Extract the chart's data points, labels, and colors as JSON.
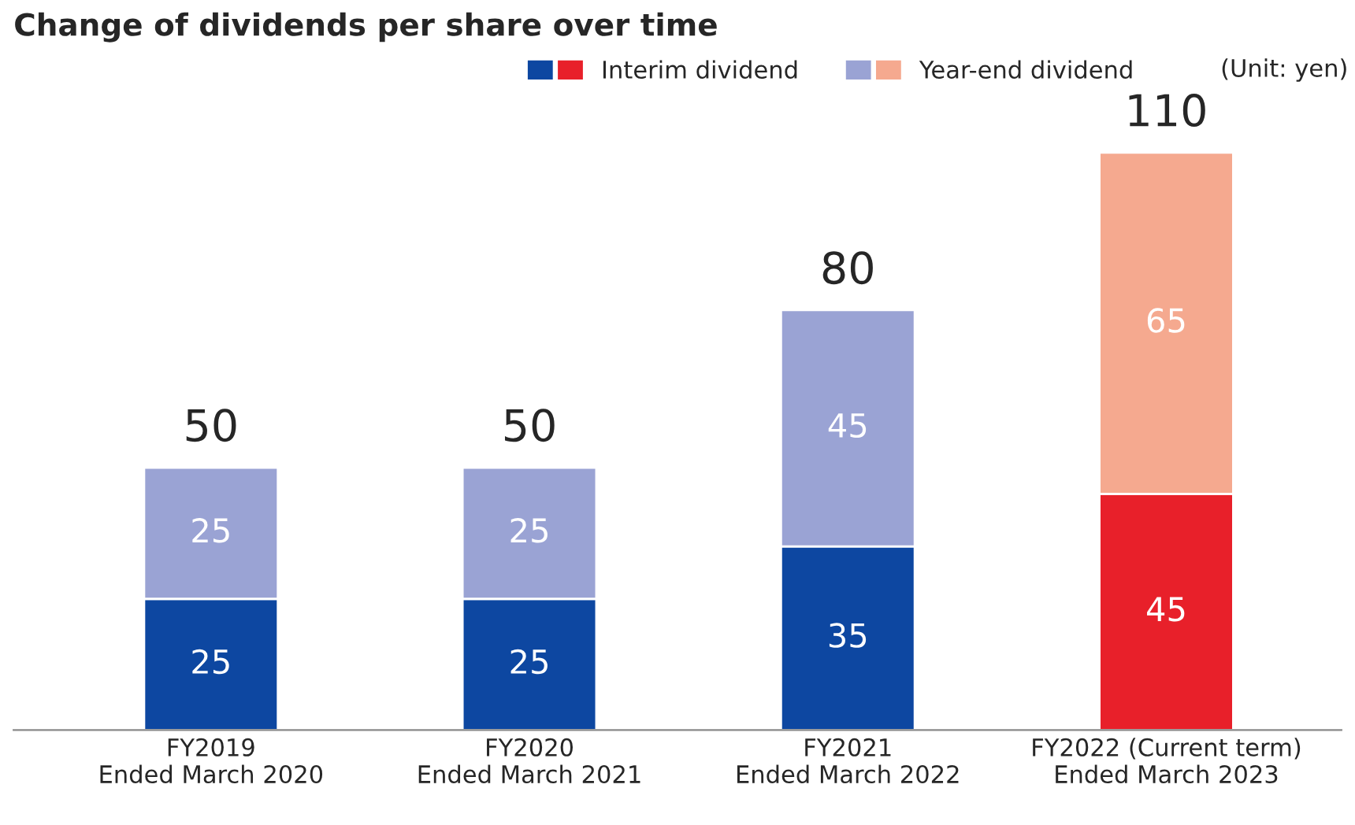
{
  "chart_data": {
    "type": "bar",
    "title": "Change of dividends per share over time",
    "categories": [
      "FY2019\nEnded March 2020",
      "FY2020\nEnded March 2021",
      "FY2021\nEnded March 2022",
      "FY2022 (Current term)\nEnded March 2023"
    ],
    "stacked": true,
    "data_labels": true,
    "totals": [
      "50",
      "50",
      "80",
      "110"
    ],
    "series": [
      {
        "name": "Interim dividend",
        "color": "#0d47a1",
        "colors": [
          "#0d47a1",
          "#0d47a1",
          "#0d47a1",
          "#e8202a"
        ],
        "values": [
          25,
          25,
          35,
          45
        ]
      },
      {
        "name": "Year-end dividend",
        "color": "#9aa3d4",
        "colors": [
          "#9aa3d4",
          "#9aa3d4",
          "#9aa3d4",
          "#f5a98f"
        ],
        "values": [
          25,
          25,
          45,
          65
        ]
      }
    ],
    "legend": "top right",
    "annotations": [
      "(Unit: yen)"
    ]
  }
}
